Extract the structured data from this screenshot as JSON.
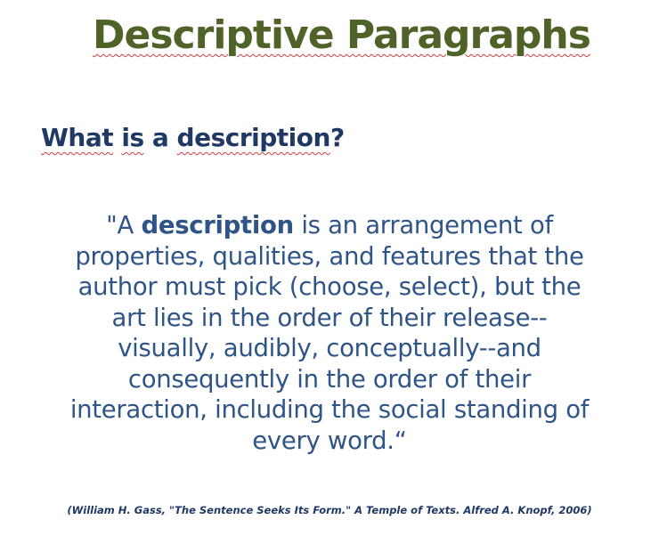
{
  "slide": {
    "title": "Descriptive Paragraphs",
    "subtitle": {
      "word1": "What",
      "word2": "is",
      "word3": "a",
      "word4": "description",
      "punct": "?"
    },
    "quote": {
      "open": "\"A ",
      "keyword": "description",
      "line1_rest": " is an arrangement of",
      "lines": [
        "properties, qualities, and features that the",
        "author must pick (choose, select), but the",
        "art lies in the order of their release--",
        "visually, audibly, conceptually--and",
        "consequently in the order of their",
        "interaction, including the social standing of",
        "every word.“"
      ]
    },
    "citation": "(William  H. Gass, \"The Sentence Seeks Its Form.\" A Temple of Texts. Alfred A. Knopf, 2006)",
    "colors": {
      "title": "#4f6228",
      "subtitle": "#1f3864",
      "quote": "#2f5487",
      "spellcheck_underline": "#d04040"
    }
  }
}
